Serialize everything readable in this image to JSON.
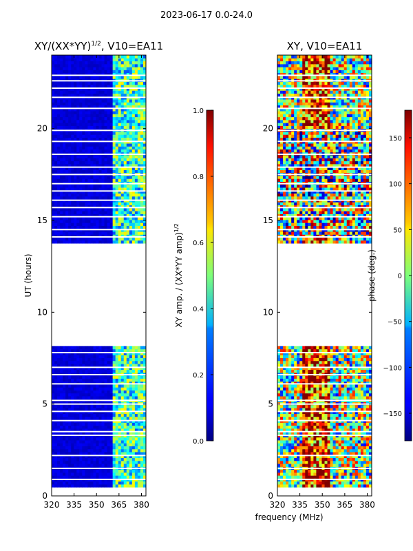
{
  "figure": {
    "suptitle": "2023-06-17 0.0-24.0",
    "shared_xlabel": "frequency (MHz)",
    "shared_ylabel": "UT (hours)"
  },
  "chart_data": [
    {
      "type": "heatmap",
      "title_main": "XY/(XX*YY)",
      "title_exp": "1/2",
      "title_suffix": ", V10=EA11",
      "xlabel": "frequency (MHz)",
      "ylabel": "UT (hours)",
      "xlim": [
        320,
        383
      ],
      "ylim": [
        0,
        24
      ],
      "xticks": [
        320,
        335,
        350,
        365,
        380
      ],
      "yticks": [
        0,
        5,
        10,
        15,
        20
      ],
      "colorbar": {
        "label_main": "XY amp. / (XX*YY amp)",
        "label_exp": "1/2",
        "range": [
          0.0,
          1.0
        ],
        "ticks": [
          "0.0",
          "0.2",
          "0.4",
          "0.6",
          "0.8",
          "1.0"
        ],
        "tick_values": [
          0.0,
          0.2,
          0.4,
          0.6,
          0.8,
          1.0
        ],
        "colormap": "jet"
      },
      "data_ranges_hours": [
        [
          0.5,
          8.1
        ],
        [
          13.8,
          24.0
        ]
      ],
      "gaps_hours": [
        0.9,
        1.5,
        2.2,
        3.3,
        3.5,
        4.1,
        4.6,
        5.0,
        5.2,
        6.1,
        6.6,
        7.0,
        7.8,
        14.1,
        14.5,
        15.2,
        15.7,
        16.1,
        16.6,
        17.0,
        17.5,
        17.9,
        18.6,
        19.3,
        19.9,
        21.1,
        21.7,
        22.2,
        22.6,
        22.9
      ],
      "pattern": "low amplitude (~0.05-0.1) below 360 MHz; elevated amplitude (~0.3-0.6) between 360 and 383 MHz"
    },
    {
      "type": "heatmap",
      "title": "XY, V10=EA11",
      "xlabel": "frequency (MHz)",
      "ylabel": "UT (hours)",
      "xlim": [
        320,
        383
      ],
      "ylim": [
        0,
        24
      ],
      "xticks": [
        320,
        335,
        350,
        365,
        380
      ],
      "yticks": [
        0,
        5,
        10,
        15,
        20
      ],
      "colorbar": {
        "label": "phase (deg.)",
        "range": [
          -180,
          180
        ],
        "ticks": [
          "150",
          "100",
          "50",
          "0",
          "−50",
          "−100",
          "−150"
        ],
        "tick_values": [
          150,
          100,
          50,
          0,
          -50,
          -100,
          -150
        ],
        "colormap": "jet"
      },
      "data_ranges_hours": [
        [
          0.5,
          8.1
        ],
        [
          13.8,
          24.0
        ]
      ],
      "gaps_hours": [
        0.9,
        1.5,
        2.2,
        3.3,
        3.5,
        4.1,
        4.6,
        5.0,
        5.2,
        6.1,
        6.6,
        7.0,
        7.8,
        14.1,
        14.5,
        15.2,
        15.7,
        16.1,
        16.6,
        17.0,
        17.5,
        17.9,
        18.6,
        19.3,
        19.9,
        21.1,
        21.7,
        22.2,
        22.6,
        22.9
      ],
      "pattern": "phase near +150 deg around 340-350 MHz, noisy wrapping elsewhere"
    }
  ]
}
